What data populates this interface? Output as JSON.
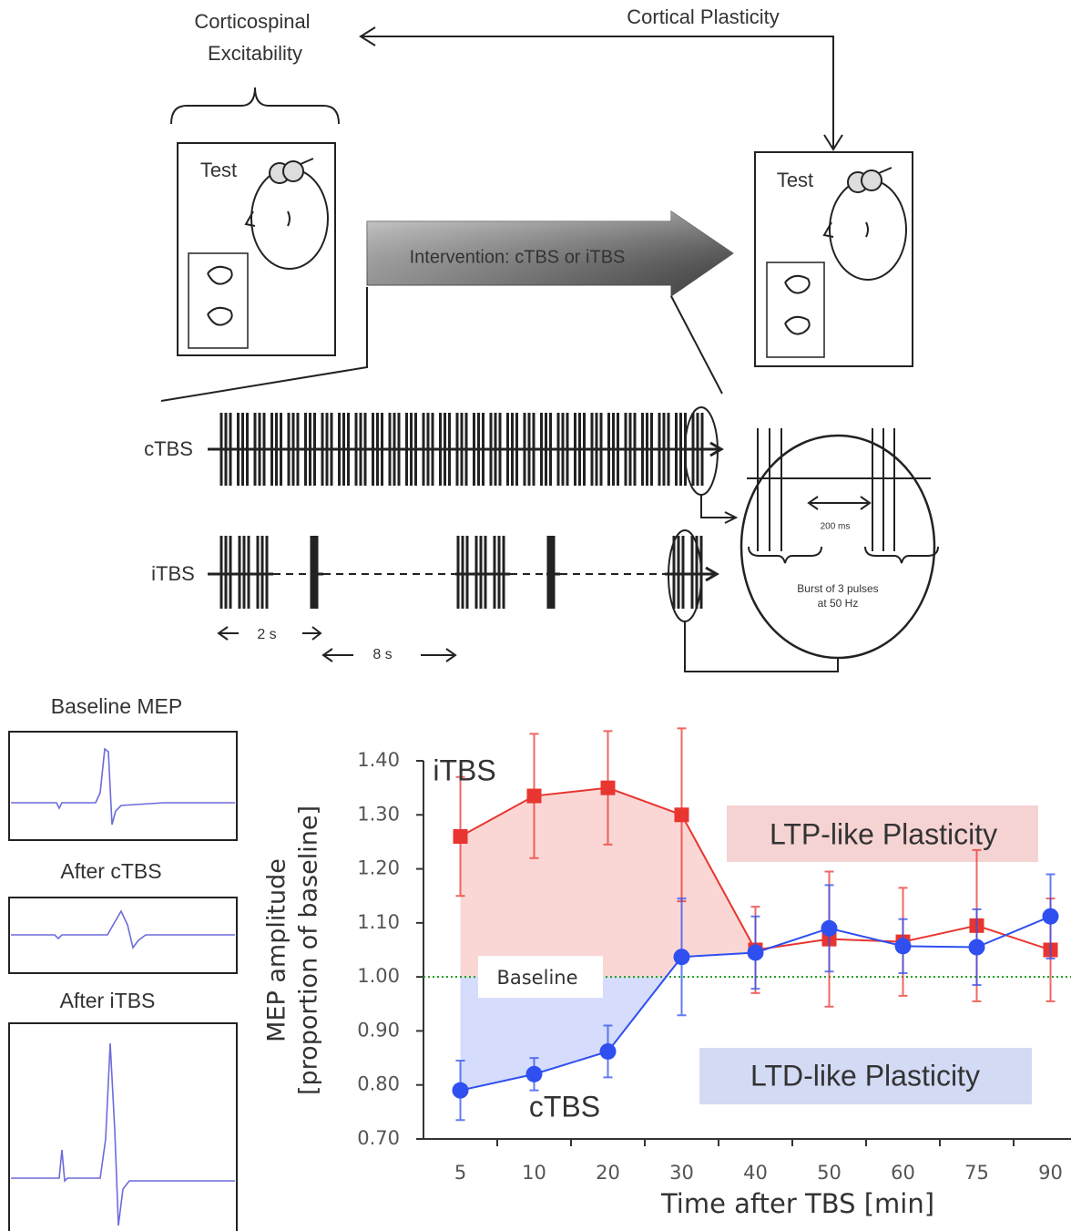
{
  "diagram": {
    "corticospinal": [
      "Corticospinal",
      "Excitability"
    ],
    "cortical_plasticity": "Cortical Plasticity",
    "test_left": "Test",
    "test_right": "Test",
    "intervention": "Intervention: cTBS or iTBS",
    "ctbs": "cTBS",
    "itbs": "iTBS",
    "interval_2s": "2 s",
    "interval_8s": "8 s",
    "interval_200ms": "200 ms",
    "burst": [
      "Burst of 3 pulses",
      "at 50 Hz"
    ]
  },
  "meps": {
    "baseline": "Baseline MEP",
    "after_ctbs": "After cTBS",
    "after_itbs": "After iTBS"
  },
  "chart_data": {
    "type": "line",
    "xlabel": "Time after TBS [min]",
    "ylabel": [
      "MEP amplitude",
      "[proportion of baseline]"
    ],
    "categories": [
      "5",
      "10",
      "20",
      "30",
      "40",
      "50",
      "60",
      "75",
      "90"
    ],
    "ylim": [
      0.7,
      1.4
    ],
    "yticks": [
      {
        "value": 0.7,
        "label": "0.70"
      },
      {
        "value": 0.8,
        "label": "0.80"
      },
      {
        "value": 0.9,
        "label": "0.90"
      },
      {
        "value": 1.0,
        "label": "1.00"
      },
      {
        "value": 1.1,
        "label": "1.10"
      },
      {
        "value": 1.2,
        "label": "1.20"
      },
      {
        "value": 1.3,
        "label": "1.30"
      },
      {
        "value": 1.4,
        "label": "1.40"
      }
    ],
    "series": [
      {
        "name": "iTBS",
        "color": "#e8352f",
        "marker": "square",
        "values": [
          1.26,
          1.335,
          1.35,
          1.3,
          1.05,
          1.07,
          1.065,
          1.095,
          1.05
        ],
        "errors": [
          0.11,
          0.115,
          0.105,
          0.16,
          0.08,
          0.125,
          0.1,
          0.14,
          0.095
        ]
      },
      {
        "name": "cTBS",
        "color": "#2f4ff0",
        "marker": "circle",
        "values": [
          0.79,
          0.82,
          0.862,
          1.037,
          1.045,
          1.09,
          1.057,
          1.055,
          1.112
        ],
        "errors": [
          0.055,
          0.03,
          0.048,
          0.108,
          0.067,
          0.08,
          0.05,
          0.07,
          0.078
        ]
      }
    ],
    "baseline": {
      "value": 1.0,
      "label": "Baseline",
      "color": "#1a9a1a"
    },
    "annotations": [
      "LTP-like Plasticity",
      "LTD-like Plasticity"
    ]
  }
}
